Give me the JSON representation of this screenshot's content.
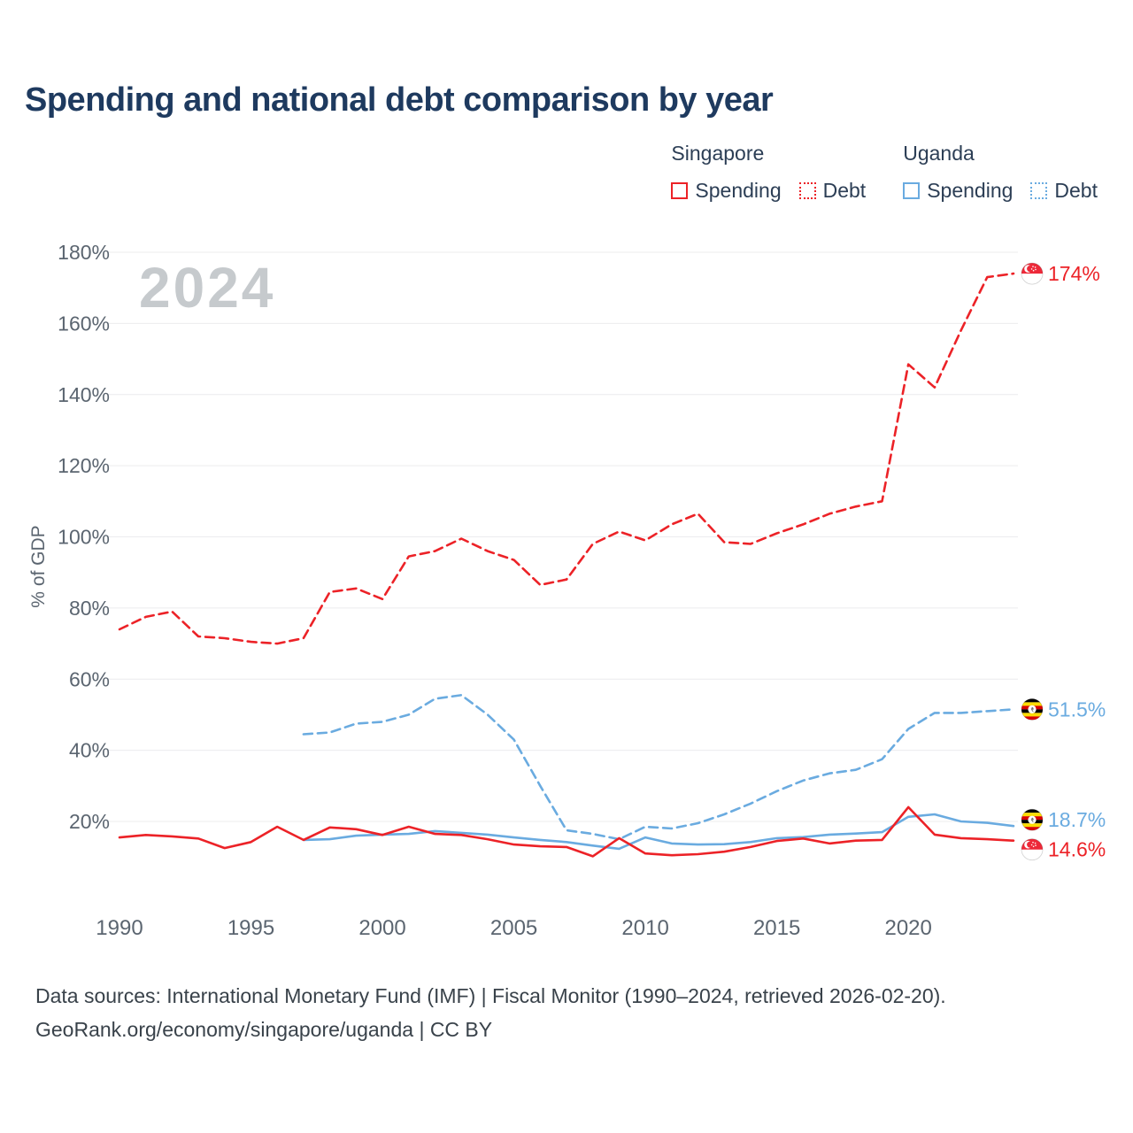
{
  "title": "Spending and national debt comparison by year",
  "watermark_year": "2024",
  "legend": {
    "groups": [
      {
        "country": "Singapore",
        "items": [
          {
            "label": "Spending"
          },
          {
            "label": "Debt"
          }
        ]
      },
      {
        "country": "Uganda",
        "items": [
          {
            "label": "Spending"
          },
          {
            "label": "Debt"
          }
        ]
      }
    ]
  },
  "colors": {
    "singapore": "#ec2227",
    "uganda": "#6aabe0",
    "title_text": "#1e3a5f",
    "tick_text": "#5b6570",
    "gridline": "#ececee",
    "watermark": "#c6cacd"
  },
  "chart_data": {
    "type": "line",
    "title": "Spending and national debt comparison by year",
    "ylabel": "% of GDP",
    "xlabel": "",
    "xlim": [
      1990,
      2024
    ],
    "ylim": [
      20,
      180
    ],
    "grid": "horizontal",
    "legend_position": "top-right",
    "yticks": [
      20,
      40,
      60,
      80,
      100,
      120,
      140,
      160,
      180
    ],
    "xticks": [
      1990,
      1995,
      2000,
      2005,
      2010,
      2015,
      2020
    ],
    "years": [
      1990,
      1991,
      1992,
      1993,
      1994,
      1995,
      1996,
      1997,
      1998,
      1999,
      2000,
      2001,
      2002,
      2003,
      2004,
      2005,
      2006,
      2007,
      2008,
      2009,
      2010,
      2011,
      2012,
      2013,
      2014,
      2015,
      2016,
      2017,
      2018,
      2019,
      2020,
      2021,
      2022,
      2023,
      2024
    ],
    "series": [
      {
        "id": "singapore-spending",
        "name": "Singapore Spending",
        "country": "Singapore",
        "metric": "Spending",
        "color": "#ec2227",
        "dash": false,
        "flag": "singapore",
        "end_label": "14.6%",
        "values": [
          15.5,
          16.2,
          15.8,
          15.2,
          12.5,
          14.2,
          18.5,
          14.8,
          18.3,
          17.8,
          16.2,
          18.5,
          16.5,
          16.2,
          15.0,
          13.5,
          13.0,
          12.8,
          10.2,
          15.3,
          11.0,
          10.5,
          10.8,
          11.5,
          12.8,
          14.5,
          15.2,
          13.8,
          14.6,
          14.8,
          24.0,
          16.3,
          15.3,
          15.0,
          14.6
        ]
      },
      {
        "id": "singapore-debt",
        "name": "Singapore Debt",
        "country": "Singapore",
        "metric": "Debt",
        "color": "#ec2227",
        "dash": true,
        "flag": "singapore",
        "end_label": "174%",
        "values": [
          74,
          77.5,
          79,
          72,
          71.5,
          70.5,
          70,
          71.5,
          84.5,
          85.5,
          82.5,
          94.5,
          96,
          99.5,
          96,
          93.5,
          86.5,
          88,
          98,
          101.5,
          99,
          103.5,
          106.5,
          98.5,
          98,
          101,
          103.5,
          106.5,
          108.5,
          110,
          148.5,
          142,
          158,
          173,
          174
        ]
      },
      {
        "id": "uganda-spending",
        "name": "Uganda Spending",
        "country": "Uganda",
        "metric": "Spending",
        "color": "#6aabe0",
        "dash": false,
        "flag": "uganda",
        "end_label": "18.7%",
        "values": [
          null,
          null,
          null,
          null,
          null,
          null,
          null,
          14.8,
          15.0,
          16.0,
          16.3,
          16.5,
          17.3,
          16.8,
          16.3,
          15.5,
          14.8,
          14.2,
          13.2,
          12.3,
          15.5,
          13.8,
          13.5,
          13.6,
          14.2,
          15.3,
          15.6,
          16.3,
          16.6,
          17.0,
          21.3,
          22.0,
          20.0,
          19.6,
          18.7
        ]
      },
      {
        "id": "uganda-debt",
        "name": "Uganda Debt",
        "country": "Uganda",
        "metric": "Debt",
        "color": "#6aabe0",
        "dash": true,
        "flag": "uganda",
        "end_label": "51.5%",
        "values": [
          null,
          null,
          null,
          null,
          null,
          null,
          null,
          44.5,
          45,
          47.5,
          48,
          50,
          54.5,
          55.5,
          50,
          43,
          30,
          17.5,
          16.5,
          15,
          18.5,
          18,
          19.5,
          22,
          25,
          28.5,
          31.5,
          33.5,
          34.5,
          37.5,
          46,
          50.5,
          50.5,
          51,
          51.5
        ]
      }
    ]
  },
  "footer": {
    "line1": "Data sources: International Monetary Fund (IMF) | Fiscal Monitor (1990–2024, retrieved 2026-02-20).",
    "line2": "GeoRank.org/economy/singapore/uganda | CC BY"
  }
}
